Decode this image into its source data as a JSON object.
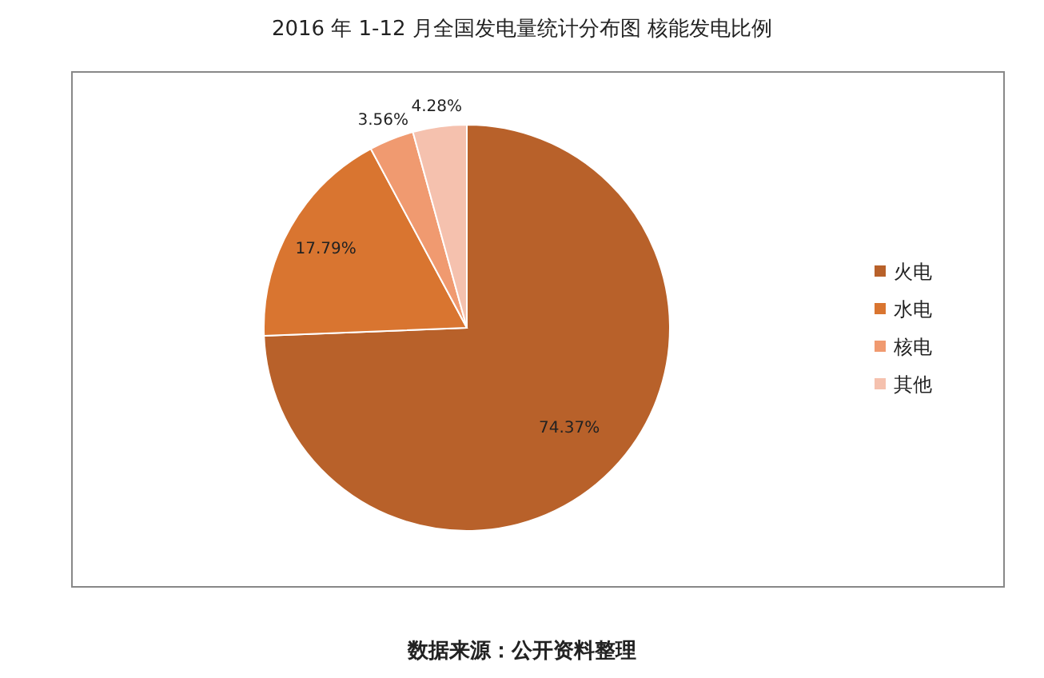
{
  "chart_data": {
    "type": "pie",
    "title": "2016 年 1-12 月全国发电量统计分布图 核能发电比例",
    "categories": [
      "火电",
      "水电",
      "核电",
      "其他"
    ],
    "values": [
      74.37,
      17.79,
      3.56,
      4.28
    ],
    "value_labels": [
      "74.37%",
      "17.79%",
      "3.56%",
      "4.28%"
    ],
    "colors": [
      "#b8612a",
      "#d97530",
      "#f09a70",
      "#f5c1ae"
    ],
    "legend": "right",
    "annotations": [
      "数据来源：公开资料整理"
    ]
  }
}
